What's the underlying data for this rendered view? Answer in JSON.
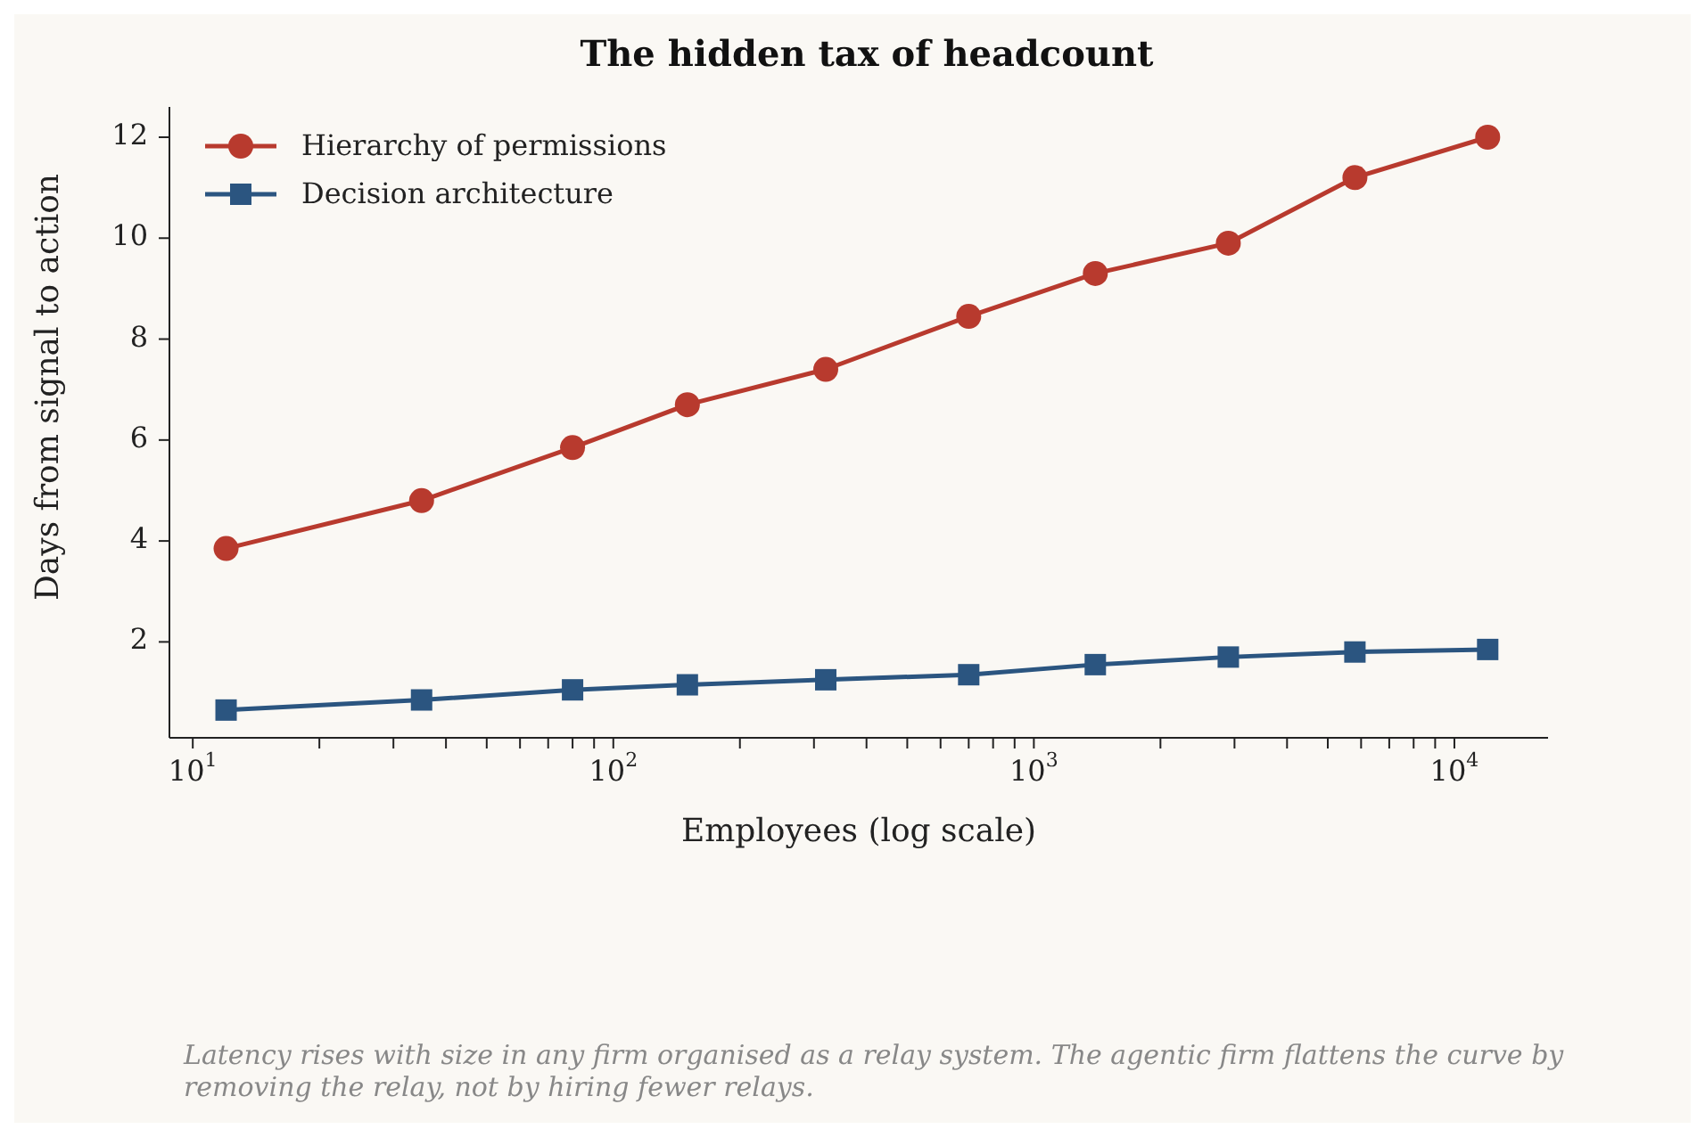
{
  "chart_data": {
    "type": "line",
    "title": "The hidden tax of headcount",
    "xlabel": "Employees (log scale)",
    "ylabel": "Days from signal to action",
    "x": [
      12,
      35,
      80,
      150,
      320,
      700,
      1400,
      2900,
      5800,
      12000
    ],
    "series": [
      {
        "name": "Hierarchy of permissions",
        "color": "#b83a2e",
        "marker": "circle",
        "values": [
          3.85,
          4.8,
          5.85,
          6.7,
          7.4,
          8.45,
          9.3,
          9.9,
          11.2,
          12.0
        ]
      },
      {
        "name": "Decision architecture",
        "color": "#2b5580",
        "marker": "square",
        "values": [
          0.65,
          0.85,
          1.05,
          1.15,
          1.25,
          1.35,
          1.55,
          1.7,
          1.8,
          1.85
        ]
      }
    ],
    "log": "x",
    "xlim": [
      8.8,
      16700
    ],
    "ylim": [
      0.1,
      12.6
    ],
    "xticks": [
      {
        "value": 10,
        "label": "10$^{1}$"
      },
      {
        "value": 20,
        "label": null
      },
      {
        "value": 30,
        "label": null
      },
      {
        "value": 40,
        "label": null
      },
      {
        "value": 50,
        "label": null
      },
      {
        "value": 60,
        "label": null
      },
      {
        "value": 70,
        "label": null
      },
      {
        "value": 80,
        "label": null
      },
      {
        "value": 90,
        "label": null
      },
      {
        "value": 100,
        "label": "10$^{2}$"
      },
      {
        "value": 200,
        "label": null
      },
      {
        "value": 300,
        "label": null
      },
      {
        "value": 400,
        "label": null
      },
      {
        "value": 500,
        "label": null
      },
      {
        "value": 600,
        "label": null
      },
      {
        "value": 700,
        "label": null
      },
      {
        "value": 800,
        "label": null
      },
      {
        "value": 900,
        "label": null
      },
      {
        "value": 1000,
        "label": "10$^{3}$"
      },
      {
        "value": 2000,
        "label": null
      },
      {
        "value": 3000,
        "label": null
      },
      {
        "value": 4000,
        "label": null
      },
      {
        "value": 5000,
        "label": null
      },
      {
        "value": 6000,
        "label": null
      },
      {
        "value": 7000,
        "label": null
      },
      {
        "value": 8000,
        "label": null
      },
      {
        "value": 9000,
        "label": null
      },
      {
        "value": 10000,
        "label": "10$^{4}$"
      }
    ],
    "yticks": [
      2,
      4,
      6,
      8,
      10,
      12
    ],
    "grid": false,
    "legend": "top left",
    "line_style": "solid",
    "annotations": [
      "Latency rises with size in any firm organised as a relay system. The agentic firm flattens the curve by removing the relay, not by hiring fewer relays."
    ]
  }
}
